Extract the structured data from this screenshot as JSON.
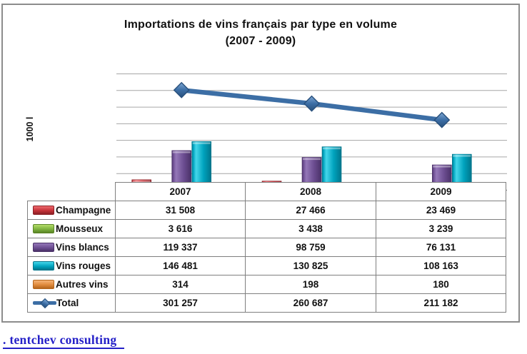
{
  "title": {
    "line1": "Importations de vins français par type en volume",
    "line2": "(2007 - 2009)"
  },
  "chart_data": {
    "type": "bar+line",
    "title": "Importations de vins français par type en volume (2007 - 2009)",
    "ylabel": "1000 l",
    "xlabel": "",
    "categories": [
      "2007",
      "2008",
      "2009"
    ],
    "ylim": [
      0,
      350000
    ],
    "gridline_step": 50000,
    "grid": "horizontal",
    "legend_position": "attached-data-table-left",
    "series": [
      {
        "name": "Champagne",
        "type": "bar",
        "values": [
          31508,
          27466,
          23469
        ],
        "colors": {
          "base": "#C53138",
          "light": "#ED6A6F",
          "dark": "#8C2026"
        }
      },
      {
        "name": "Mousseux",
        "type": "bar",
        "values": [
          3616,
          3438,
          3239
        ],
        "colors": {
          "base": "#7EB23F",
          "light": "#B4DC6A",
          "dark": "#5A8526"
        }
      },
      {
        "name": "Vins blancs",
        "type": "bar",
        "values": [
          119337,
          98759,
          76131
        ],
        "colors": {
          "base": "#6D4E92",
          "light": "#9477B8",
          "dark": "#4A3168"
        }
      },
      {
        "name": "Vins rouges",
        "type": "bar",
        "values": [
          146481,
          130825,
          108163
        ],
        "colors": {
          "base": "#00A3BE",
          "light": "#45D6EA",
          "dark": "#00758B"
        }
      },
      {
        "name": "Autres vins",
        "type": "bar",
        "values": [
          314,
          198,
          180
        ],
        "colors": {
          "base": "#E08A3C",
          "light": "#F5B376",
          "dark": "#B5661D"
        }
      },
      {
        "name": "Total",
        "type": "line",
        "values": [
          301257,
          260687,
          211182
        ],
        "colors": {
          "base": "#3C6EA5",
          "light": "#7FA8D4",
          "dark": "#28507C"
        }
      }
    ]
  },
  "table": {
    "years": [
      "2007",
      "2008",
      "2009"
    ],
    "rows": [
      {
        "label": "Champagne",
        "values": [
          "31 508",
          "27 466",
          "23 469"
        ]
      },
      {
        "label": "Mousseux",
        "values": [
          "3 616",
          "3 438",
          "3 239"
        ]
      },
      {
        "label": "Vins blancs",
        "values": [
          "119 337",
          "98 759",
          "76 131"
        ]
      },
      {
        "label": "Vins rouges",
        "values": [
          "146 481",
          "130 825",
          "108 163"
        ]
      },
      {
        "label": "Autres vins",
        "values": [
          "314",
          "198",
          "180"
        ]
      },
      {
        "label": "Total",
        "values": [
          "301 257",
          "260 687",
          "211 182"
        ]
      }
    ]
  },
  "footer": {
    "link_text": ". tentchev consulting"
  }
}
